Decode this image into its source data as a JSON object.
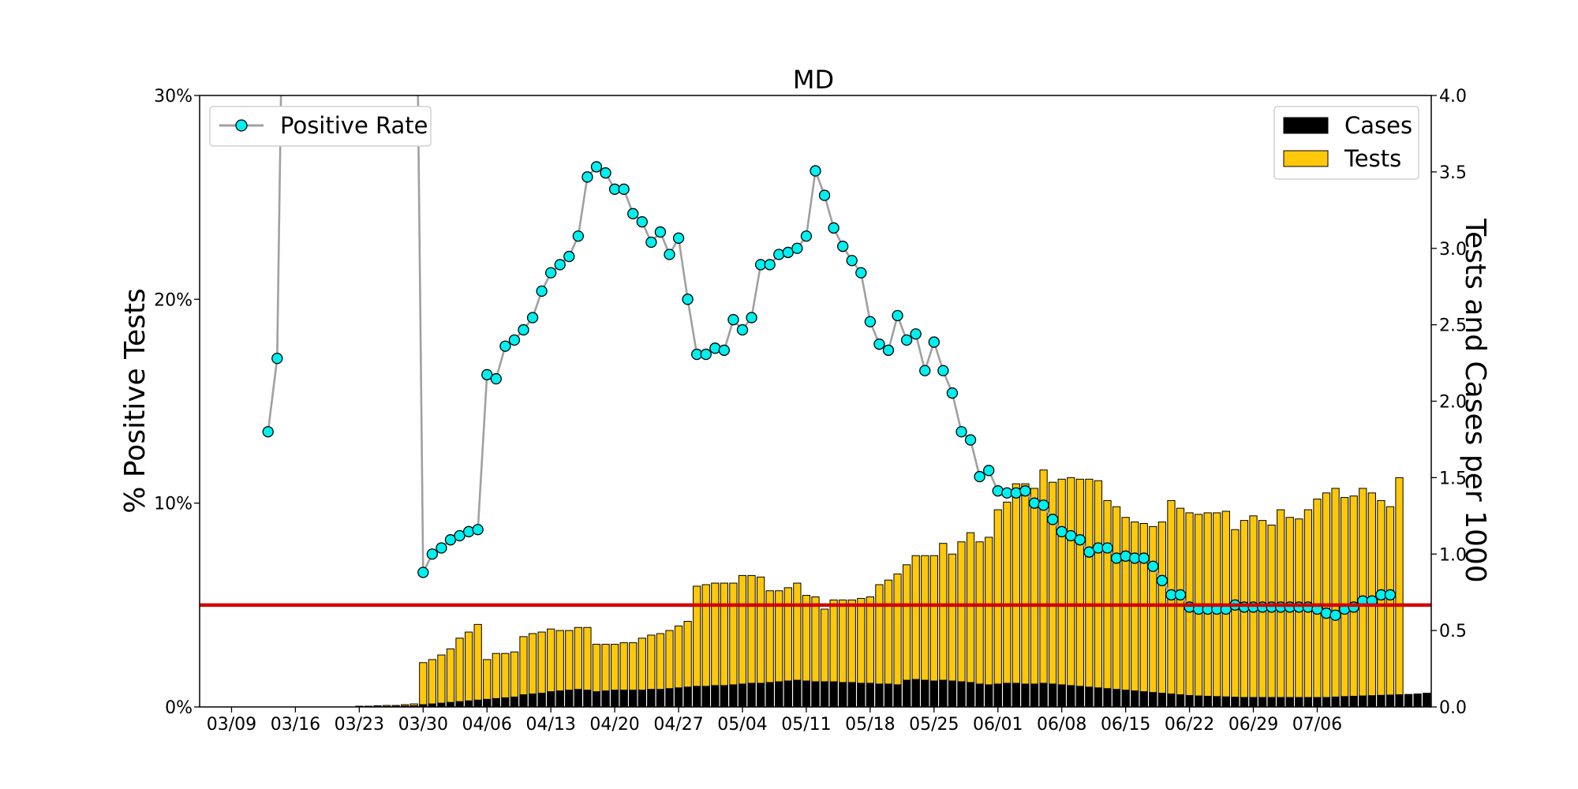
{
  "chart_data": {
    "type": "bar+line",
    "title": "MD",
    "ylabel_left": "% Positive Tests",
    "ylabel_right": "Tests and Cases per 1000",
    "xlabel": "",
    "ylim_left": [
      0,
      30
    ],
    "ylim_right": [
      0,
      4.0
    ],
    "left_ticks": [
      "0%",
      "10%",
      "20%",
      "30%"
    ],
    "left_tick_values": [
      0,
      10,
      20,
      30
    ],
    "right_ticks": [
      "0.0",
      "0.5",
      "1.0",
      "1.5",
      "2.0",
      "2.5",
      "3.0",
      "3.5",
      "4.0"
    ],
    "right_tick_values": [
      0,
      0.5,
      1.0,
      1.5,
      2.0,
      2.5,
      3.0,
      3.5,
      4.0
    ],
    "x_tick_labels": [
      "03/09",
      "03/16",
      "03/23",
      "03/30",
      "04/06",
      "04/13",
      "04/20",
      "04/27",
      "05/04",
      "05/11",
      "05/18",
      "05/25",
      "06/01",
      "06/08",
      "06/15",
      "06/22",
      "06/29",
      "07/06"
    ],
    "x_tick_days": [
      0,
      7,
      14,
      21,
      28,
      35,
      42,
      49,
      56,
      63,
      70,
      77,
      84,
      91,
      98,
      105,
      112,
      119
    ],
    "x_range_days": [
      -3.5,
      131.5
    ],
    "threshold_line": {
      "value": 5,
      "color": "#d40000"
    },
    "grid": false,
    "legend_left": {
      "placement": "top-left",
      "entries": [
        "Positive Rate"
      ]
    },
    "legend_right": {
      "placement": "top-right",
      "entries": [
        "Cases",
        "Tests"
      ]
    },
    "colors": {
      "tests": "#ffc80a",
      "cases": "#000000",
      "rate_marker": "#00f0f0",
      "rate_line": "#a0a0a0"
    },
    "series": [
      {
        "name": "Tests",
        "axis": "right",
        "start_day": 0,
        "values": [
          0,
          0,
          0,
          0,
          0,
          0,
          0,
          0,
          0,
          0,
          0,
          0,
          0,
          0,
          0.005,
          0.005,
          0.008,
          0.01,
          0.01,
          0.015,
          0.02,
          0.29,
          0.31,
          0.34,
          0.38,
          0.45,
          0.49,
          0.54,
          0.31,
          0.35,
          0.35,
          0.36,
          0.46,
          0.48,
          0.49,
          0.51,
          0.5,
          0.5,
          0.52,
          0.52,
          0.41,
          0.41,
          0.41,
          0.42,
          0.42,
          0.45,
          0.47,
          0.48,
          0.5,
          0.53,
          0.56,
          0.79,
          0.8,
          0.81,
          0.81,
          0.81,
          0.86,
          0.86,
          0.85,
          0.76,
          0.76,
          0.78,
          0.81,
          0.73,
          0.72,
          0.64,
          0.7,
          0.7,
          0.7,
          0.71,
          0.72,
          0.8,
          0.83,
          0.87,
          0.93,
          0.99,
          0.99,
          0.99,
          1.07,
          1.0,
          1.08,
          1.14,
          1.08,
          1.11,
          1.29,
          1.34,
          1.46,
          1.46,
          1.43,
          1.55,
          1.47,
          1.49,
          1.5,
          1.49,
          1.49,
          1.48,
          1.35,
          1.31,
          1.24,
          1.21,
          1.2,
          1.18,
          1.21,
          1.35,
          1.3,
          1.27,
          1.26,
          1.27,
          1.27,
          1.28,
          1.16,
          1.22,
          1.25,
          1.22,
          1.19,
          1.29,
          1.24,
          1.23,
          1.29,
          1.36,
          1.4,
          1.43,
          1.37,
          1.38,
          1.43,
          1.4,
          1.35,
          1.31,
          1.5
        ]
      },
      {
        "name": "Cases",
        "axis": "right",
        "start_day": 0,
        "values": [
          0,
          0,
          0,
          0,
          0,
          0,
          0,
          0,
          0,
          0,
          0,
          0,
          0,
          0,
          0,
          0,
          0.002,
          0.003,
          0.004,
          0.006,
          0.008,
          0.015,
          0.02,
          0.025,
          0.03,
          0.035,
          0.04,
          0.045,
          0.05,
          0.055,
          0.06,
          0.065,
          0.08,
          0.085,
          0.09,
          0.1,
          0.105,
          0.11,
          0.115,
          0.11,
          0.1,
          0.105,
          0.11,
          0.11,
          0.11,
          0.11,
          0.115,
          0.115,
          0.12,
          0.125,
          0.13,
          0.135,
          0.135,
          0.14,
          0.14,
          0.145,
          0.15,
          0.155,
          0.155,
          0.16,
          0.165,
          0.17,
          0.175,
          0.17,
          0.165,
          0.165,
          0.165,
          0.16,
          0.16,
          0.155,
          0.155,
          0.15,
          0.15,
          0.145,
          0.175,
          0.18,
          0.175,
          0.17,
          0.175,
          0.17,
          0.165,
          0.16,
          0.15,
          0.145,
          0.15,
          0.155,
          0.155,
          0.15,
          0.15,
          0.155,
          0.15,
          0.145,
          0.14,
          0.135,
          0.13,
          0.125,
          0.12,
          0.115,
          0.11,
          0.105,
          0.1,
          0.095,
          0.09,
          0.085,
          0.08,
          0.075,
          0.072,
          0.07,
          0.068,
          0.066,
          0.064,
          0.062,
          0.062,
          0.062,
          0.062,
          0.062,
          0.062,
          0.062,
          0.062,
          0.062,
          0.062,
          0.065,
          0.068,
          0.07,
          0.072,
          0.074,
          0.076,
          0.078,
          0.08,
          0.082,
          0.085,
          0.09
        ]
      },
      {
        "name": "Positive Rate",
        "axis": "left",
        "points": [
          [
            4,
            13.5
          ],
          [
            5,
            17.1
          ],
          [
            6,
            48.0
          ],
          [
            20,
            48.0
          ],
          [
            21,
            6.6
          ],
          [
            22,
            7.5
          ],
          [
            23,
            7.8
          ],
          [
            24,
            8.2
          ],
          [
            25,
            8.4
          ],
          [
            26,
            8.6
          ],
          [
            27,
            8.7
          ],
          [
            28,
            16.3
          ],
          [
            29,
            16.1
          ],
          [
            30,
            17.7
          ],
          [
            31,
            18.0
          ],
          [
            32,
            18.5
          ],
          [
            33,
            19.1
          ],
          [
            34,
            20.4
          ],
          [
            35,
            21.3
          ],
          [
            36,
            21.7
          ],
          [
            37,
            22.1
          ],
          [
            38,
            23.1
          ],
          [
            39,
            26.0
          ],
          [
            40,
            26.5
          ],
          [
            41,
            26.2
          ],
          [
            42,
            25.4
          ],
          [
            43,
            25.4
          ],
          [
            44,
            24.2
          ],
          [
            45,
            23.8
          ],
          [
            46,
            22.8
          ],
          [
            47,
            23.3
          ],
          [
            48,
            22.2
          ],
          [
            49,
            23.0
          ],
          [
            50,
            20.0
          ],
          [
            51,
            17.3
          ],
          [
            52,
            17.3
          ],
          [
            53,
            17.6
          ],
          [
            54,
            17.5
          ],
          [
            55,
            19.0
          ],
          [
            56,
            18.5
          ],
          [
            57,
            19.1
          ],
          [
            58,
            21.7
          ],
          [
            59,
            21.7
          ],
          [
            60,
            22.2
          ],
          [
            61,
            22.3
          ],
          [
            62,
            22.5
          ],
          [
            63,
            23.1
          ],
          [
            64,
            26.3
          ],
          [
            65,
            25.1
          ],
          [
            66,
            23.5
          ],
          [
            67,
            22.6
          ],
          [
            68,
            21.9
          ],
          [
            69,
            21.3
          ],
          [
            70,
            18.9
          ],
          [
            71,
            17.8
          ],
          [
            72,
            17.5
          ],
          [
            73,
            19.2
          ],
          [
            74,
            18.0
          ],
          [
            75,
            18.3
          ],
          [
            76,
            16.5
          ],
          [
            77,
            17.9
          ],
          [
            78,
            16.5
          ],
          [
            79,
            15.4
          ],
          [
            80,
            13.5
          ],
          [
            81,
            13.1
          ],
          [
            82,
            11.3
          ],
          [
            83,
            11.6
          ],
          [
            84,
            10.6
          ],
          [
            85,
            10.5
          ],
          [
            86,
            10.5
          ],
          [
            87,
            10.6
          ],
          [
            88,
            10.0
          ],
          [
            89,
            9.9
          ],
          [
            90,
            9.2
          ],
          [
            91,
            8.6
          ],
          [
            92,
            8.4
          ],
          [
            93,
            8.2
          ],
          [
            94,
            7.6
          ],
          [
            95,
            7.8
          ],
          [
            96,
            7.8
          ],
          [
            97,
            7.3
          ],
          [
            98,
            7.4
          ],
          [
            99,
            7.3
          ],
          [
            100,
            7.3
          ],
          [
            101,
            6.9
          ],
          [
            102,
            6.2
          ],
          [
            103,
            5.5
          ],
          [
            104,
            5.5
          ],
          [
            105,
            4.9
          ],
          [
            106,
            4.8
          ],
          [
            107,
            4.8
          ],
          [
            108,
            4.8
          ],
          [
            109,
            4.8
          ],
          [
            110,
            5.0
          ],
          [
            111,
            4.9
          ],
          [
            112,
            4.9
          ],
          [
            113,
            4.9
          ],
          [
            114,
            4.9
          ],
          [
            115,
            4.9
          ],
          [
            116,
            4.9
          ],
          [
            117,
            4.9
          ],
          [
            118,
            4.9
          ],
          [
            119,
            4.8
          ],
          [
            120,
            4.6
          ],
          [
            121,
            4.5
          ],
          [
            122,
            4.8
          ],
          [
            123,
            4.9
          ],
          [
            124,
            5.2
          ],
          [
            125,
            5.2
          ],
          [
            126,
            5.5
          ],
          [
            127,
            5.5
          ]
        ]
      }
    ]
  }
}
